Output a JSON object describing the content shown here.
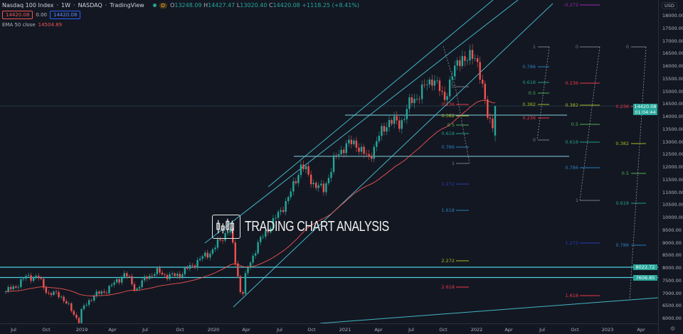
{
  "header": {
    "symbol": "Nasdaq 100 Index",
    "interval": "1W",
    "exchange": "NASDAQ",
    "source": "TradingView",
    "badge": "D",
    "open_label": "O",
    "open": "13248.09",
    "high_label": "H",
    "high": "14427.47",
    "low_label": "L",
    "low": "13020.40",
    "close_label": "C",
    "close": "14420.08",
    "change": "+1118.25 (+8.41%)",
    "sell": "14420.08",
    "spread": "0.00",
    "buy": "14420.08"
  },
  "indicator": {
    "name": "EMA 50 close",
    "value": "14504.89",
    "color": "#ef5350"
  },
  "brand": {
    "text": "TRADING CHART ANALYSIS"
  },
  "price_axis": {
    "currency": "USD",
    "labels": [
      "18000.00",
      "17500.00",
      "17000.00",
      "16500.00",
      "16000.00",
      "15500.00",
      "15000.00",
      "14500.00",
      "14000.00",
      "13500.00",
      "13000.00",
      "12500.00",
      "12000.00",
      "11500.00",
      "11000.00",
      "10500.00",
      "10000.00",
      "9500.00",
      "9000.00",
      "8500.00",
      "8000.00",
      "7500.00",
      "7000.00",
      "6500.00",
      "6000.00"
    ],
    "current_price": "14420.08",
    "countdown": "01:04:44",
    "level_1": "8022.72",
    "level_2": "7606.85"
  },
  "time_axis": {
    "labels": [
      "Jul",
      "Oct",
      "2019",
      "Apr",
      "Jul",
      "Oct",
      "2020",
      "Apr",
      "Jul",
      "Oct",
      "2021",
      "Apr",
      "Jul",
      "Oct",
      "2022",
      "Apr",
      "Jul",
      "Oct",
      "2023",
      "Apr"
    ]
  },
  "fib_sets": [
    {
      "levels": [
        "0",
        "0.236",
        "0.382",
        "0.5",
        "0.618",
        "0.786",
        "1",
        "1.272",
        "1.618",
        "2.272",
        "2.618"
      ]
    },
    {
      "levels": [
        "1",
        "0.786",
        "0.618",
        "0.5",
        "0.382",
        "0.236",
        "0"
      ]
    },
    {
      "levels": [
        "-0.272",
        "0",
        "0.236",
        "0.382",
        "0.5",
        "0.618",
        "0.786",
        "1",
        "1.272",
        "1.618"
      ]
    },
    {
      "levels": [
        "0",
        "0.236",
        "0.382",
        "0.5",
        "0.618",
        "0.786"
      ]
    }
  ],
  "colors": {
    "up": "#26a69a",
    "down": "#ef5350",
    "lines": "#4dd0e1",
    "background": "#131722"
  },
  "chart_data": {
    "type": "candlestick",
    "title": "Nasdaq 100 Index · 1W · NASDAQ",
    "ylim": [
      6000,
      18000
    ],
    "y_scale": "linear",
    "grid": false,
    "monthly_close_approx": [
      [
        "2018-06-01",
        7040
      ],
      [
        "2018-07-01",
        7270
      ],
      [
        "2018-08-01",
        7660
      ],
      [
        "2018-09-01",
        7630
      ],
      [
        "2018-10-01",
        6970
      ],
      [
        "2018-11-01",
        6950
      ],
      [
        "2018-12-24",
        5900
      ],
      [
        "2019-01-01",
        6330
      ],
      [
        "2019-02-01",
        6900
      ],
      [
        "2019-03-01",
        7030
      ],
      [
        "2019-04-01",
        7380
      ],
      [
        "2019-05-01",
        7780
      ],
      [
        "2019-06-01",
        7130
      ],
      [
        "2019-07-01",
        7670
      ],
      [
        "2019-08-01",
        7840
      ],
      [
        "2019-09-01",
        7660
      ],
      [
        "2019-10-01",
        7750
      ],
      [
        "2019-11-01",
        8080
      ],
      [
        "2019-12-01",
        8400
      ],
      [
        "2020-01-01",
        8730
      ],
      [
        "2020-02-15",
        9600
      ],
      [
        "2020-03-20",
        6770
      ],
      [
        "2020-04-01",
        7810
      ],
      [
        "2020-05-01",
        8890
      ],
      [
        "2020-06-01",
        9550
      ],
      [
        "2020-07-01",
        10160
      ],
      [
        "2020-08-01",
        10900
      ],
      [
        "2020-09-01",
        12110
      ],
      [
        "2020-10-01",
        11420
      ],
      [
        "2020-11-01",
        11050
      ],
      [
        "2020-12-01",
        12270
      ],
      [
        "2021-01-01",
        12890
      ],
      [
        "2021-02-01",
        12930
      ],
      [
        "2021-03-05",
        12300
      ],
      [
        "2021-04-01",
        13090
      ],
      [
        "2021-05-01",
        13860
      ],
      [
        "2021-06-01",
        13690
      ],
      [
        "2021-07-01",
        14550
      ],
      [
        "2021-08-01",
        15000
      ],
      [
        "2021-09-01",
        15580
      ],
      [
        "2021-10-01",
        14690
      ],
      [
        "2021-11-01",
        15850
      ],
      [
        "2021-11-20",
        16500
      ],
      [
        "2021-12-01",
        16140
      ],
      [
        "2021-12-27",
        16500
      ],
      [
        "2022-01-01",
        16320
      ],
      [
        "2022-01-28",
        14200
      ],
      [
        "2022-02-18",
        13600
      ],
      [
        "2022-02-24",
        13300
      ]
    ],
    "last_candle": {
      "open": 13248.09,
      "high": 14427.47,
      "low": 13020.4,
      "close": 14420.08
    },
    "ema_period": 50,
    "horizontal_levels": [
      8022.72,
      7606.85,
      14420.08
    ]
  }
}
